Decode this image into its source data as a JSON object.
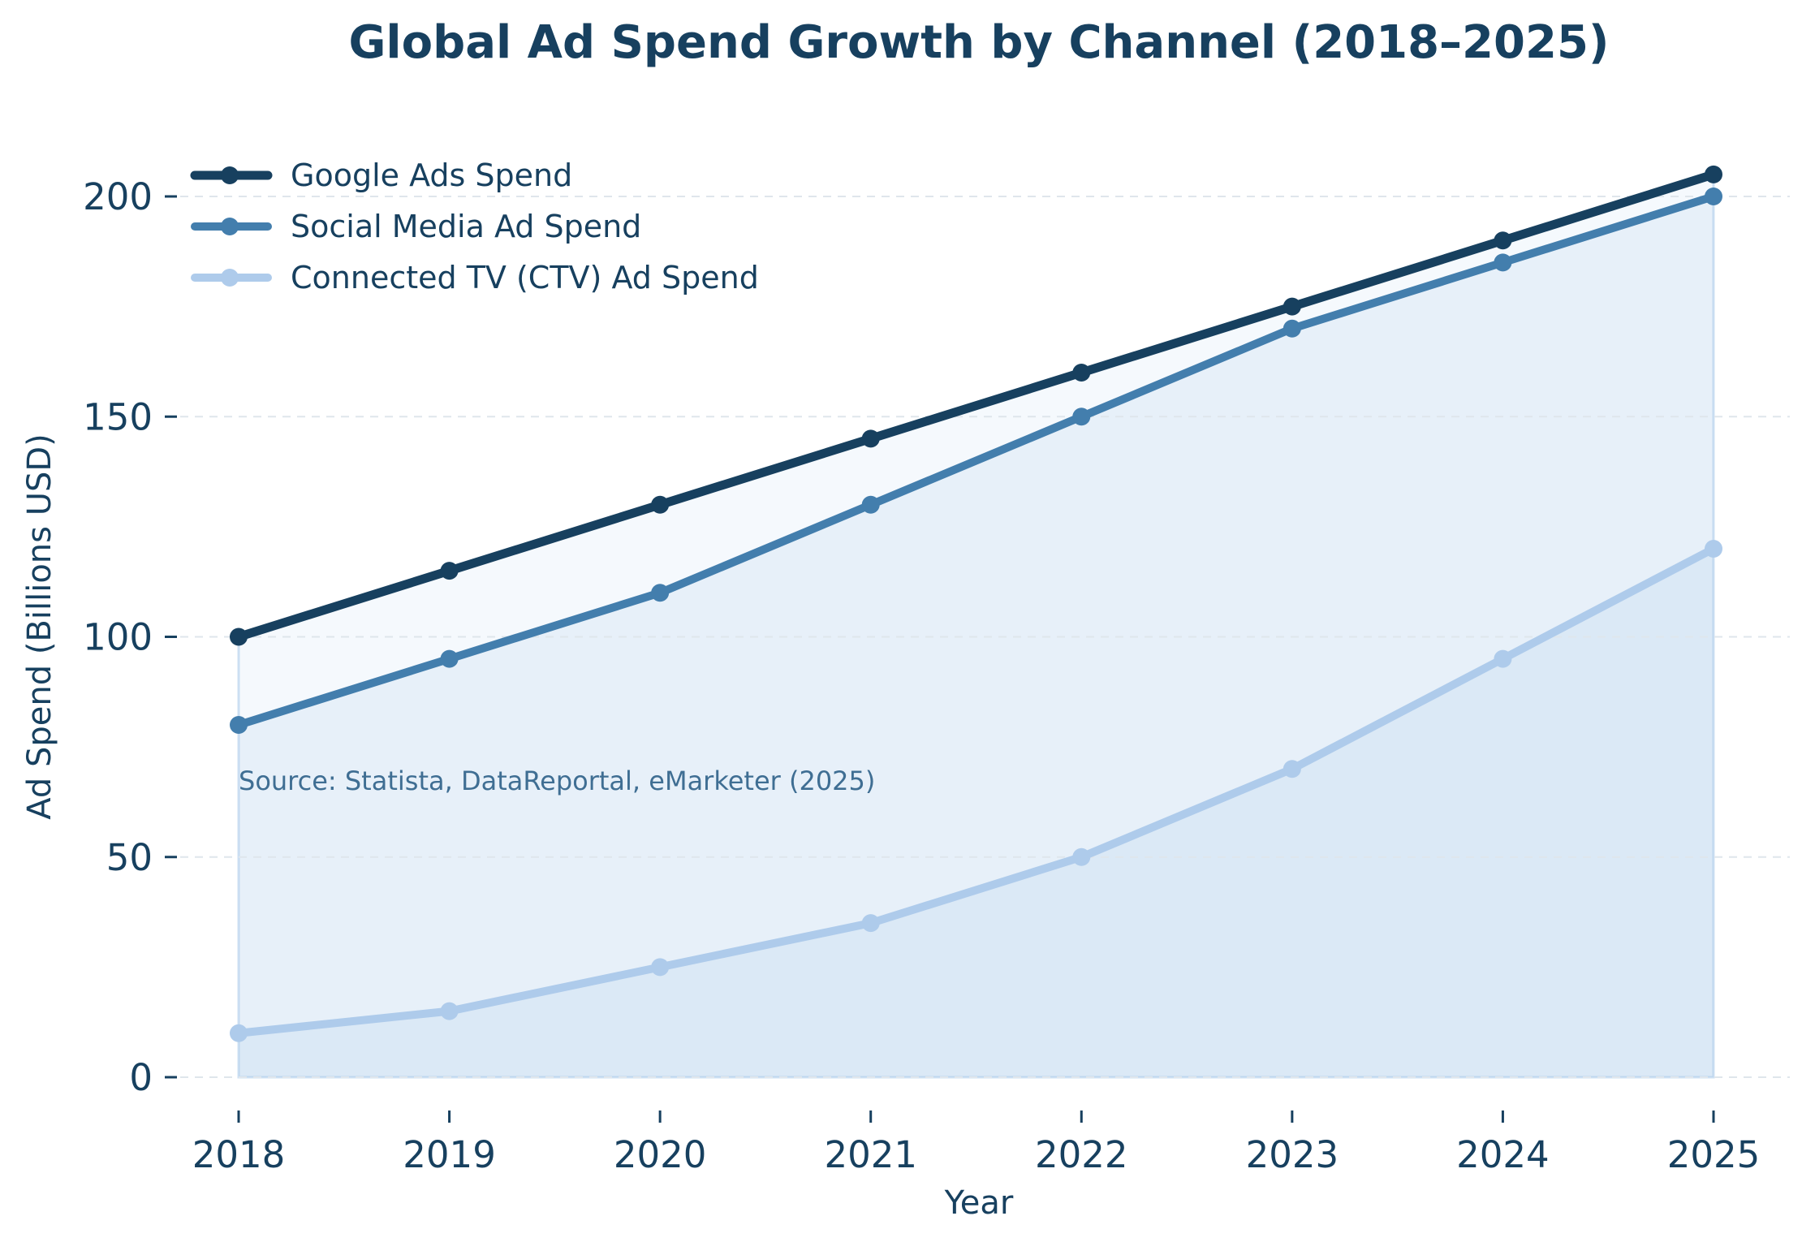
{
  "chart_data": {
    "type": "line",
    "title": "Global Ad Spend Growth by Channel (2018–2025)",
    "xlabel": "Year",
    "ylabel": "Ad Spend (Billions USD)",
    "x": [
      "2018",
      "2019",
      "2020",
      "2021",
      "2022",
      "2023",
      "2024",
      "2025"
    ],
    "ylim": [
      -5,
      220
    ],
    "yticks": [
      "0",
      "50",
      "100",
      "150",
      "200"
    ],
    "grid": "horizontal dashed",
    "legend_position": "top-left",
    "series": [
      {
        "name": "Google Ads Spend",
        "color": "#17405f",
        "values": [
          100,
          115,
          130,
          145,
          160,
          175,
          190,
          205
        ]
      },
      {
        "name": "Social Media Ad Spend",
        "color": "#437ead",
        "values": [
          80,
          95,
          110,
          130,
          150,
          170,
          185,
          200
        ]
      },
      {
        "name": "Connected TV (CTV) Ad Spend",
        "color": "#aecbeb",
        "values": [
          10,
          15,
          25,
          35,
          50,
          70,
          95,
          120
        ]
      }
    ],
    "annotation": "Source: Statista, DataReportal, eMarketer (2025)"
  }
}
